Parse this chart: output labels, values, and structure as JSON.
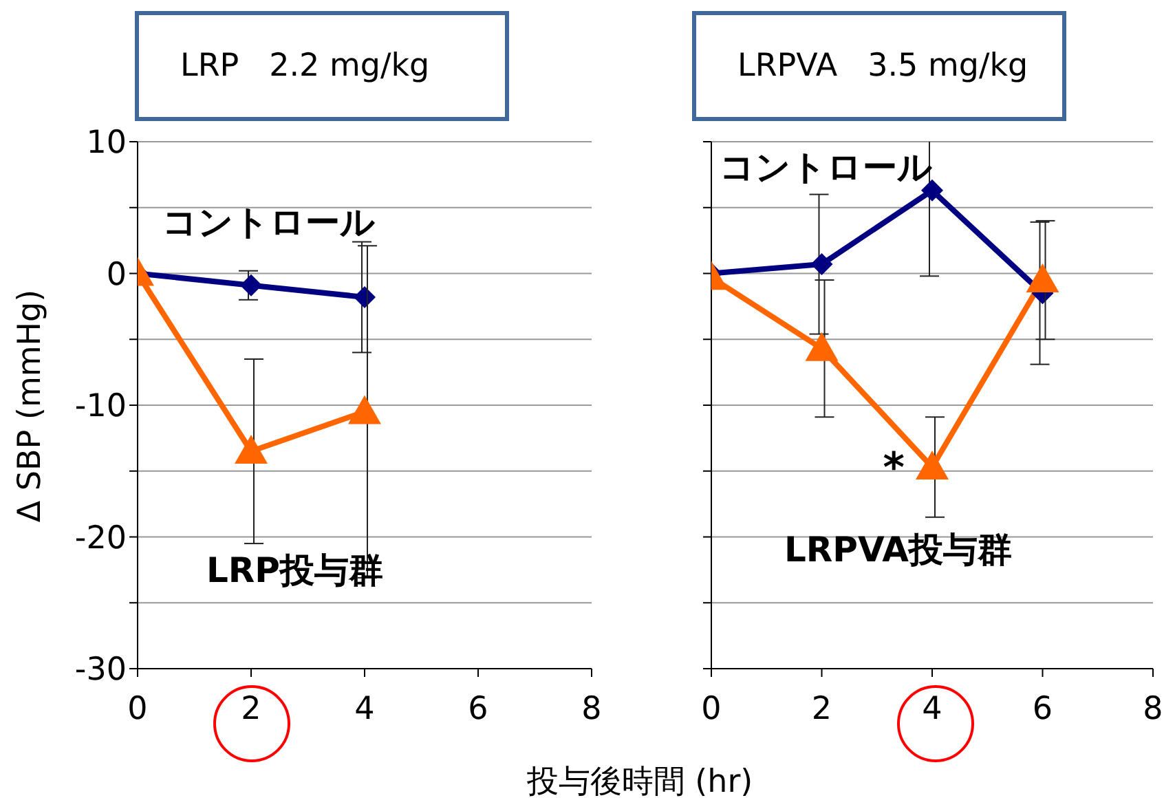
{
  "chart_data": [
    {
      "type": "line",
      "title": "LRP   2.2 mg/kg",
      "xlabel": "投与後時間 (hr)",
      "ylabel": "Δ SBP (mmHg)",
      "x": [
        0,
        2,
        4
      ],
      "series": [
        {
          "name": "コントロール",
          "color": "#000080",
          "marker": "diamond",
          "values": [
            0,
            -0.9,
            -1.8
          ],
          "errors": [
            null,
            1.1,
            4.2
          ]
        },
        {
          "name": "LRP投与群",
          "color": "#ff6600",
          "marker": "triangle",
          "values": [
            0,
            -13.5,
            -10.5
          ],
          "errors": [
            null,
            7,
            12.6
          ]
        }
      ],
      "xlim": [
        0,
        8
      ],
      "xticks": [
        0,
        2,
        4,
        6,
        8
      ],
      "ylim": [
        -30,
        10
      ],
      "yticks": [
        -30,
        {
          "value": -25,
          "label": null
        },
        -20,
        {
          "value": -15,
          "label": null
        },
        -10,
        {
          "value": -5,
          "label": null
        },
        0,
        {
          "value": 5,
          "label": null
        },
        10
      ],
      "grid": "y",
      "legend": false
    },
    {
      "type": "line",
      "title": "LRPVA   3.5 mg/kg",
      "x": [
        0,
        2,
        4,
        6
      ],
      "series": [
        {
          "name": "コントロール",
          "color": "#000080",
          "marker": "diamond",
          "values": [
            0,
            0.7,
            6.3,
            -1.5
          ],
          "errors": [
            null,
            5.3,
            6.5,
            5.4
          ]
        },
        {
          "name": "LRPVA投与群",
          "color": "#ff6600",
          "marker": "triangle",
          "values": [
            -0.3,
            -5.7,
            -14.7,
            -0.5
          ],
          "errors": [
            null,
            5.2,
            3.8,
            4.5
          ]
        }
      ],
      "annotations": [
        {
          "text": "*",
          "x": 4,
          "y": -14.7
        }
      ],
      "xlim": [
        0,
        8
      ],
      "xticks": [
        0,
        2,
        4,
        6,
        8
      ],
      "ylim": [
        -30,
        10
      ],
      "yticks": [
        {
          "value": -30,
          "label": null
        },
        {
          "value": -25,
          "label": null
        },
        {
          "value": -20,
          "label": null
        },
        {
          "value": -15,
          "label": null
        },
        {
          "value": -10,
          "label": null
        },
        {
          "value": -5,
          "label": null
        },
        {
          "value": 0,
          "label": null
        },
        {
          "value": 5,
          "label": null
        },
        {
          "value": 10,
          "label": null
        }
      ],
      "tick_labels": "x",
      "grid": "y",
      "legend": false
    }
  ]
}
